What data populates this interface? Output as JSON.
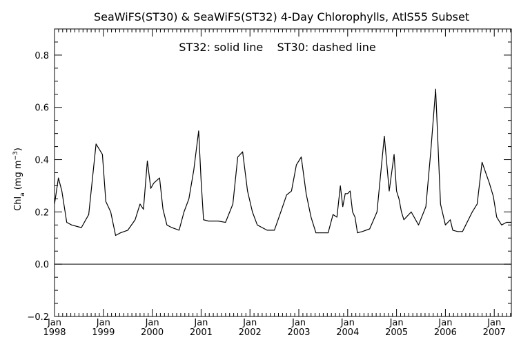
{
  "chart_data": {
    "type": "line",
    "title": "SeaWiFS(ST30) & SeaWiFS(ST32) 4-Day Chlorophylls, AtlS55 Subset",
    "annotation": "ST32: solid line    ST30: dashed line",
    "ylabel": {
      "prefix": "Chl",
      "sub": "a",
      "middle": " (mg m",
      "sup": "−3",
      "suffix": ")"
    },
    "ylim": [
      -0.2,
      0.9
    ],
    "xlim": [
      1998.0,
      2007.35
    ],
    "yticks": [
      "−0.2",
      "0.0",
      "0.2",
      "0.4",
      "0.6",
      "0.8"
    ],
    "ytick_values": [
      -0.2,
      0.0,
      0.2,
      0.4,
      0.6,
      0.8
    ],
    "xticks": [
      {
        "value": 1998,
        "month": "Jan",
        "year": "1998"
      },
      {
        "value": 1999,
        "month": "Jan",
        "year": "1999"
      },
      {
        "value": 2000,
        "month": "Jan",
        "year": "2000"
      },
      {
        "value": 2001,
        "month": "Jan",
        "year": "2001"
      },
      {
        "value": 2002,
        "month": "Jan",
        "year": "2002"
      },
      {
        "value": 2003,
        "month": "Jan",
        "year": "2003"
      },
      {
        "value": 2004,
        "month": "Jan",
        "year": "2004"
      },
      {
        "value": 2005,
        "month": "Jan",
        "year": "2005"
      },
      {
        "value": 2006,
        "month": "Jan",
        "year": "2006"
      },
      {
        "value": 2007,
        "month": "Jan",
        "year": "2007"
      }
    ],
    "zero_line": 0.0,
    "series": [
      {
        "style": "solid",
        "color": "#000000",
        "x": [
          1998.0,
          1998.08,
          1998.15,
          1998.25,
          1998.35,
          1998.55,
          1998.7,
          1998.85,
          1998.98,
          1999.05,
          1999.15,
          1999.25,
          1999.35,
          1999.5,
          1999.65,
          1999.75,
          1999.82,
          1999.9,
          1999.97,
          2000.03,
          2000.15,
          2000.22,
          2000.3,
          2000.4,
          2000.55,
          2000.65,
          2000.75,
          2000.85,
          2000.95,
          2001.0,
          2001.05,
          2001.15,
          2001.25,
          2001.35,
          2001.5,
          2001.65,
          2001.75,
          2001.85,
          2001.95,
          2002.05,
          2002.15,
          2002.25,
          2002.35,
          2002.5,
          2002.65,
          2002.75,
          2002.85,
          2002.95,
          2003.05,
          2003.15,
          2003.25,
          2003.35,
          2003.45,
          2003.6,
          2003.7,
          2003.78,
          2003.85,
          2003.9,
          2003.95,
          2004.0,
          2004.05,
          2004.1,
          2004.15,
          2004.2,
          2004.3,
          2004.45,
          2004.6,
          2004.75,
          2004.85,
          2004.95,
          2005.0,
          2005.05,
          2005.1,
          2005.15,
          2005.2,
          2005.3,
          2005.45,
          2005.6,
          2005.7,
          2005.8,
          2005.9,
          2006.0,
          2006.1,
          2006.15,
          2006.25,
          2006.35,
          2006.55,
          2006.65,
          2006.75,
          2006.9,
          2006.98,
          2007.05,
          2007.15,
          2007.25,
          2007.35
        ],
        "y": [
          0.23,
          0.33,
          0.28,
          0.16,
          0.15,
          0.14,
          0.19,
          0.46,
          0.42,
          0.24,
          0.2,
          0.11,
          0.12,
          0.13,
          0.17,
          0.23,
          0.21,
          0.395,
          0.29,
          0.31,
          0.33,
          0.21,
          0.15,
          0.14,
          0.13,
          0.2,
          0.25,
          0.36,
          0.51,
          0.32,
          0.17,
          0.165,
          0.165,
          0.165,
          0.16,
          0.23,
          0.41,
          0.43,
          0.28,
          0.2,
          0.15,
          0.14,
          0.13,
          0.13,
          0.21,
          0.265,
          0.28,
          0.38,
          0.41,
          0.27,
          0.18,
          0.12,
          0.12,
          0.12,
          0.19,
          0.18,
          0.3,
          0.22,
          0.27,
          0.27,
          0.28,
          0.2,
          0.18,
          0.12,
          0.125,
          0.135,
          0.2,
          0.49,
          0.28,
          0.42,
          0.28,
          0.25,
          0.2,
          0.17,
          0.18,
          0.2,
          0.15,
          0.22,
          0.43,
          0.67,
          0.23,
          0.15,
          0.17,
          0.13,
          0.125,
          0.125,
          0.2,
          0.23,
          0.39,
          0.31,
          0.26,
          0.18,
          0.15,
          0.16,
          0.16
        ]
      }
    ],
    "grid": false,
    "legend": "none"
  }
}
